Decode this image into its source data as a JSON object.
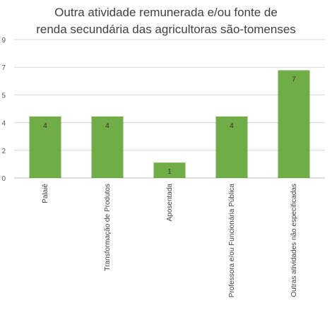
{
  "chart_data": {
    "type": "bar",
    "title_lines": [
      "Outra atividade remunerada e/ou fonte de",
      "renda secundária das agricultoras são-tomenses"
    ],
    "categories": [
      "Palaiê",
      "Transformação de Produtos",
      "Aposentada",
      "Professora e/ou Funcionária Pública",
      "Outras atividades não especificadas"
    ],
    "values": [
      4,
      4,
      1,
      4,
      7
    ],
    "data_labels": [
      "4",
      "4",
      "1",
      "4",
      "7"
    ],
    "y_tick_labels": [
      "0",
      "2",
      "4",
      "5",
      "7",
      "9"
    ],
    "ylim": [
      0,
      9
    ],
    "grid": true,
    "legend": "none",
    "bar_color": "#70AD47",
    "grid_color": "#D9D9D9"
  }
}
